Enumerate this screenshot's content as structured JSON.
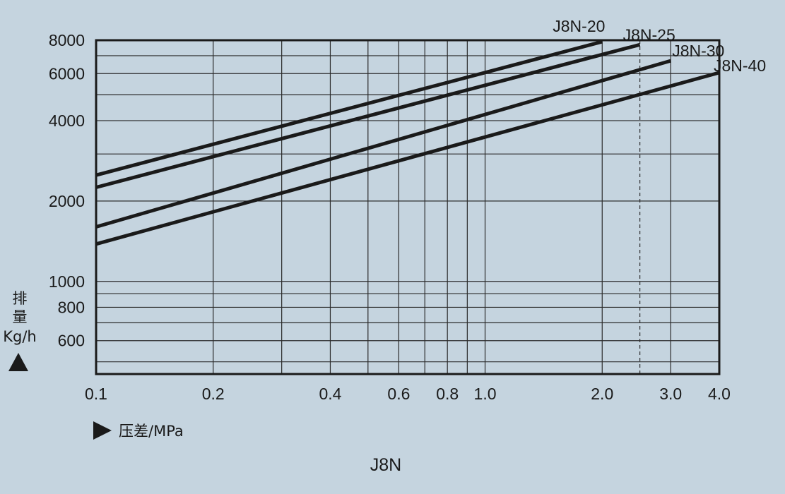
{
  "chart_data": {
    "type": "line",
    "title": "J8N",
    "xlabel": "压差/MPa",
    "ylabel_lines": [
      "排",
      "量",
      "Kg/h"
    ],
    "x_scale": "log",
    "y_scale": "log",
    "xlim": [
      0.1,
      4.0
    ],
    "ylim": [
      450,
      8000
    ],
    "x_ticks": [
      {
        "value": 0.1,
        "label": "0.1"
      },
      {
        "value": 0.2,
        "label": "0.2"
      },
      {
        "value": 0.4,
        "label": "0.4"
      },
      {
        "value": 0.6,
        "label": "0.6"
      },
      {
        "value": 0.8,
        "label": "0.8"
      },
      {
        "value": 1.0,
        "label": "1.0"
      },
      {
        "value": 2.0,
        "label": "2.0"
      },
      {
        "value": 3.0,
        "label": "3.0"
      },
      {
        "value": 4.0,
        "label": "4.0"
      }
    ],
    "y_ticks": [
      {
        "value": 600,
        "label": "600"
      },
      {
        "value": 800,
        "label": "800"
      },
      {
        "value": 1000,
        "label": "1000"
      },
      {
        "value": 2000,
        "label": "2000"
      },
      {
        "value": 4000,
        "label": "4000"
      },
      {
        "value": 6000,
        "label": "6000"
      },
      {
        "value": 8000,
        "label": "8000"
      }
    ],
    "x_grid": [
      0.2,
      0.3,
      0.4,
      0.5,
      0.6,
      0.7,
      0.8,
      0.9,
      1.0,
      2.0,
      3.0
    ],
    "y_grid": [
      500,
      600,
      700,
      800,
      900,
      1000,
      2000,
      3000,
      4000,
      5000,
      6000,
      7000
    ],
    "dashed_x": 2.5,
    "grid": true,
    "series": [
      {
        "name": "J8N-20",
        "x": [
          0.1,
          2.0
        ],
        "y": [
          2500,
          7900
        ]
      },
      {
        "name": "J8N-25",
        "x": [
          0.1,
          2.5
        ],
        "y": [
          2250,
          7700
        ]
      },
      {
        "name": "J8N-30",
        "x": [
          0.1,
          3.0
        ],
        "y": [
          1600,
          6700
        ]
      },
      {
        "name": "J8N-40",
        "x": [
          0.1,
          4.0
        ],
        "y": [
          1380,
          6050
        ]
      }
    ],
    "colors": {
      "background": "#c5d4df",
      "line": "#1a1a1a",
      "grid": "#2b2b2b"
    }
  }
}
